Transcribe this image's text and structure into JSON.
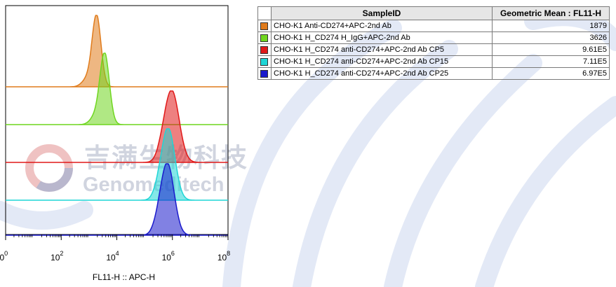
{
  "watermark": {
    "cn": "吉满生物科技",
    "en": "Genomeditech"
  },
  "chart_data": {
    "type": "histogram",
    "layout": "offset overlay (stacked)",
    "xlabel": "FL11-H :: APC-H",
    "xscale": "log",
    "xlim": [
      1,
      100000000
    ],
    "xticks": [
      {
        "value": 1,
        "base": "10",
        "exp": "0"
      },
      {
        "value": 100,
        "base": "10",
        "exp": "2"
      },
      {
        "value": 10000,
        "base": "10",
        "exp": "4"
      },
      {
        "value": 1000000,
        "base": "10",
        "exp": "6"
      },
      {
        "value": 100000000,
        "base": "10",
        "exp": "8"
      }
    ],
    "series": [
      {
        "name": "CHO-K1 Anti-CD274+APC-2nd Ab",
        "color": "#e07b1b",
        "geometric_mean": 1879,
        "peak_log10": 3.27,
        "sigma": 0.16
      },
      {
        "name": "CHO-K1 H_CD274 H_IgG+APC-2nd Ab",
        "color": "#6fd61f",
        "geometric_mean": 3626,
        "peak_log10": 3.56,
        "sigma": 0.17
      },
      {
        "name": "CHO-K1 H_CD274 anti-CD274+APC-2nd Ab CP5",
        "color": "#e01818",
        "geometric_mean": 961000,
        "peak_log10": 5.98,
        "sigma": 0.26
      },
      {
        "name": "CHO-K1 H_CD274 anti-CD274+APC-2nd Ab CP15",
        "color": "#1fd6d6",
        "geometric_mean": 711000,
        "peak_log10": 5.85,
        "sigma": 0.24
      },
      {
        "name": "CHO-K1 H_CD274 anti-CD274+APC-2nd Ab CP25",
        "color": "#1a1acc",
        "geometric_mean": 697000,
        "peak_log10": 5.82,
        "sigma": 0.24
      }
    ]
  },
  "stats_table": {
    "headers": {
      "sample": "SampleID",
      "value": "Geometric Mean : FL11-H"
    },
    "rows": [
      {
        "color": "#e07b1b",
        "sample": "CHO-K1 Anti-CD274+APC-2nd Ab",
        "value": "1879"
      },
      {
        "color": "#6fd61f",
        "sample": "CHO-K1 H_CD274 H_IgG+APC-2nd Ab",
        "value": "3626"
      },
      {
        "color": "#e01818",
        "sample": "CHO-K1 H_CD274 anti-CD274+APC-2nd Ab CP5",
        "value": "9.61E5"
      },
      {
        "color": "#1fd6d6",
        "sample": "CHO-K1 H_CD274 anti-CD274+APC-2nd Ab CP15",
        "value": "7.11E5"
      },
      {
        "color": "#1a1acc",
        "sample": "CHO-K1 H_CD274 anti-CD274+APC-2nd Ab CP25",
        "value": "6.97E5"
      }
    ]
  }
}
